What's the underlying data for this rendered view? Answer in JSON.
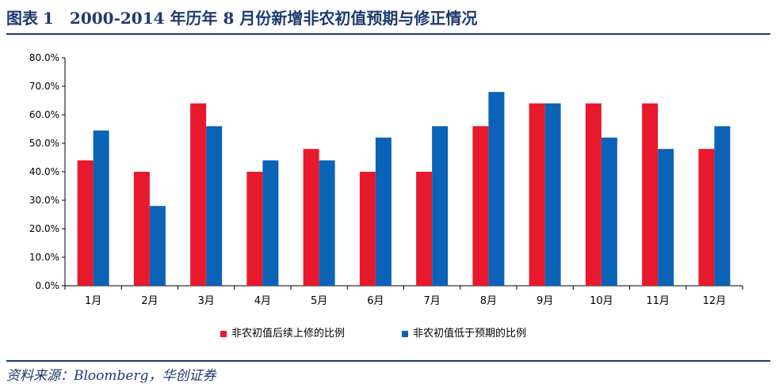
{
  "figure": {
    "label": "图表",
    "number": "1",
    "title": "2000-2014 年历年 8 月份新增非农初值预期与修正情况",
    "source": "资料来源：Bloomberg，华创证券"
  },
  "colors": {
    "series_red": "#e8192c",
    "series_blue": "#0b63b8",
    "rule": "#1f3a6e"
  },
  "chart_data": {
    "type": "bar",
    "title": "",
    "xlabel": "",
    "ylabel": "",
    "ylim": [
      0,
      80
    ],
    "y_ticks": [
      "0.0%",
      "10.0%",
      "20.0%",
      "30.0%",
      "40.0%",
      "50.0%",
      "60.0%",
      "70.0%",
      "80.0%"
    ],
    "grid": false,
    "legend_position": "bottom-center",
    "categories": [
      "1月",
      "2月",
      "3月",
      "4月",
      "5月",
      "6月",
      "7月",
      "8月",
      "9月",
      "10月",
      "11月",
      "12月"
    ],
    "series": [
      {
        "name": "非农初值后续上修的比例",
        "color": "#e8192c",
        "values": [
          44,
          40,
          64,
          40,
          48,
          40,
          40,
          56,
          64,
          64,
          64,
          48
        ]
      },
      {
        "name": "非农初值低于预期的比例",
        "color": "#0b63b8",
        "values": [
          54.5,
          28,
          56,
          44,
          44,
          52,
          56,
          68,
          64,
          52,
          48,
          56
        ]
      }
    ]
  }
}
